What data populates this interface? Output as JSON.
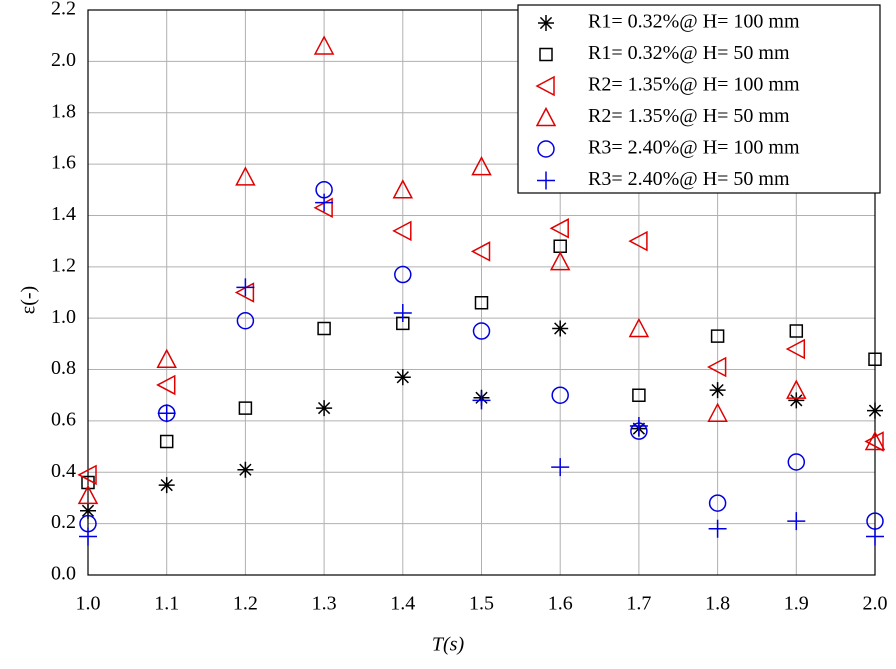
{
  "chart_data": {
    "type": "scatter",
    "xlabel": "T(s)",
    "ylabel": "ε(-)",
    "x": [
      1.0,
      1.1,
      1.2,
      1.3,
      1.4,
      1.5,
      1.6,
      1.7,
      1.8,
      1.9,
      2.0
    ],
    "xlim": [
      1.0,
      2.0
    ],
    "xticks": [
      {
        "value": 1.0,
        "label": "1.0"
      },
      1.1,
      1.2,
      1.3,
      1.4,
      1.5,
      1.6,
      1.7,
      1.8,
      1.9,
      {
        "value": 2.0,
        "label": "2.0"
      }
    ],
    "ylim": [
      0.0,
      2.2
    ],
    "yticks": [
      {
        "value": 0.0,
        "label": "0.0"
      },
      0.2,
      0.4,
      0.6,
      0.8,
      {
        "value": 1.0,
        "label": "1.0"
      },
      1.2,
      1.4,
      1.6,
      1.8,
      {
        "value": 2.0,
        "label": "2.0"
      },
      2.2
    ],
    "grid": true,
    "legend": "upper right",
    "series": [
      {
        "name": "R1= 0.32%@ H= 100 mm",
        "color": "#000000",
        "marker": "asterisk",
        "values": [
          0.25,
          0.35,
          0.41,
          0.65,
          0.77,
          0.69,
          0.96,
          0.57,
          0.72,
          0.68,
          0.64
        ]
      },
      {
        "name": "R1= 0.32%@ H= 50 mm",
        "color": "#000000",
        "marker": "square",
        "values": [
          0.36,
          0.52,
          0.65,
          0.96,
          0.98,
          1.06,
          1.28,
          0.7,
          0.93,
          0.95,
          0.84
        ]
      },
      {
        "name": "R2= 1.35%@ H= 100 mm",
        "color": "#e00000",
        "marker": "triangle-left",
        "values": [
          0.39,
          0.74,
          1.1,
          1.43,
          1.34,
          1.26,
          1.35,
          1.3,
          0.81,
          0.88,
          0.52
        ]
      },
      {
        "name": "R2= 1.35%@ H= 50 mm",
        "color": "#e00000",
        "marker": "triangle-up",
        "values": [
          0.31,
          0.84,
          1.55,
          2.06,
          1.5,
          1.59,
          1.22,
          0.96,
          0.63,
          0.72,
          0.52
        ]
      },
      {
        "name": "R3= 2.40%@ H= 100 mm",
        "color": "#0000e0",
        "marker": "circle",
        "values": [
          0.2,
          0.63,
          0.99,
          1.5,
          1.17,
          0.95,
          0.7,
          0.56,
          0.28,
          0.44,
          0.21
        ]
      },
      {
        "name": "R3= 2.40%@ H= 50 mm",
        "color": "#0000e0",
        "marker": "plus",
        "values": [
          0.15,
          0.63,
          1.12,
          1.45,
          1.02,
          0.68,
          0.42,
          0.58,
          0.18,
          0.21,
          0.15
        ]
      }
    ]
  }
}
